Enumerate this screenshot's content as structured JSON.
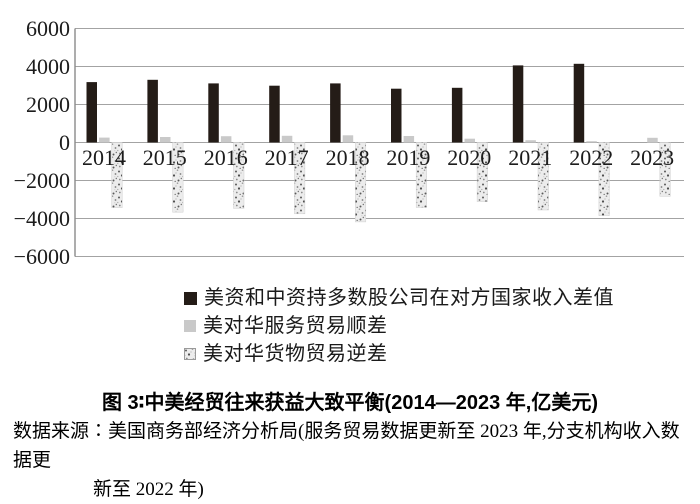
{
  "figure": {
    "title": "图 3∶中美经贸往来获益大致平衡(2014—2023 年,亿美元)",
    "source_line1": "数据来源∶美国商务部经济分析局(服务贸易数据更新至 2023 年,分支机构收入数据更",
    "source_line2": "新至 2022 年)"
  },
  "chart_data": {
    "type": "bar",
    "title": "图 3∶中美经贸往来获益大致平衡(2014—2023 年,亿美元)",
    "unit": "亿美元",
    "categories": [
      "2014",
      "2015",
      "2016",
      "2017",
      "2018",
      "2019",
      "2020",
      "2021",
      "2022",
      "2023"
    ],
    "series": [
      {
        "name": "美资和中资持多数股公司在对方国家收入差值",
        "style": "solid",
        "color": "#241c17",
        "values": [
          3180,
          3300,
          3110,
          2990,
          3110,
          2830,
          2880,
          4060,
          4140,
          null
        ]
      },
      {
        "name": "美对华服务贸易顺差",
        "style": "solid",
        "color": "#c9c9c9",
        "values": [
          260,
          290,
          330,
          350,
          380,
          340,
          200,
          120,
          70,
          250
        ]
      },
      {
        "name": "美对华货物贸易逆差",
        "style": "speckled",
        "color": "#ececec",
        "values": [
          -3430,
          -3670,
          -3470,
          -3750,
          -4180,
          -3420,
          -3110,
          -3550,
          -3850,
          -2830
        ]
      }
    ],
    "ylim": [
      -6000,
      6000
    ],
    "yticks": [
      6000,
      4000,
      2000,
      0,
      -2000,
      -4000,
      -6000
    ],
    "grid": true,
    "legend_position": "below-left",
    "colors": {
      "gridline": "#a3a3a3",
      "axis": "#8a8a8a",
      "text": "#1c1c1c",
      "speckle_base": "#ececec",
      "speckle_border": "#9a9a9a"
    }
  }
}
